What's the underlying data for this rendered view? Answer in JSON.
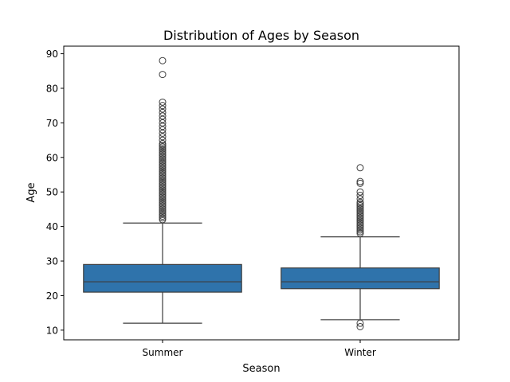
{
  "chart_data": {
    "type": "box",
    "title": "Distribution of Ages by Season",
    "xlabel": "Season",
    "ylabel": "Age",
    "ylim": [
      7.2,
      92.2
    ],
    "yticks": [
      10,
      20,
      30,
      40,
      50,
      60,
      70,
      80,
      90
    ],
    "grid": false,
    "box_color": "#2f73ab",
    "line_color": "#3d3d3d",
    "categories": [
      "Summer",
      "Winter"
    ],
    "boxes": [
      {
        "category": "Summer",
        "whisker_low": 12,
        "q1": 21,
        "median": 24,
        "q3": 29,
        "whisker_high": 41,
        "outliers": [
          42,
          42.5,
          43,
          43.5,
          44,
          44.5,
          45,
          45.5,
          46,
          46.5,
          47,
          47.5,
          48,
          48.5,
          49,
          49.5,
          50,
          50.5,
          51,
          51.5,
          52,
          52.5,
          53,
          53.5,
          54,
          54.5,
          55,
          55.5,
          56,
          56.5,
          57,
          57.5,
          58,
          58.5,
          59,
          59.5,
          60,
          60.5,
          61,
          61.5,
          62,
          62.5,
          63,
          63.5,
          64,
          65,
          66,
          67,
          68,
          69,
          70,
          71,
          72,
          73,
          74,
          75,
          76,
          84,
          88
        ]
      },
      {
        "category": "Winter",
        "whisker_low": 13,
        "q1": 22,
        "median": 24,
        "q3": 28,
        "whisker_high": 37,
        "outliers": [
          11,
          12,
          38,
          38.5,
          39,
          39.5,
          40,
          40.5,
          41,
          41.5,
          42,
          42.5,
          43,
          43.5,
          44,
          44.5,
          45,
          45.5,
          46,
          46.5,
          47,
          48,
          49,
          50,
          52.5,
          53,
          57
        ]
      }
    ]
  }
}
